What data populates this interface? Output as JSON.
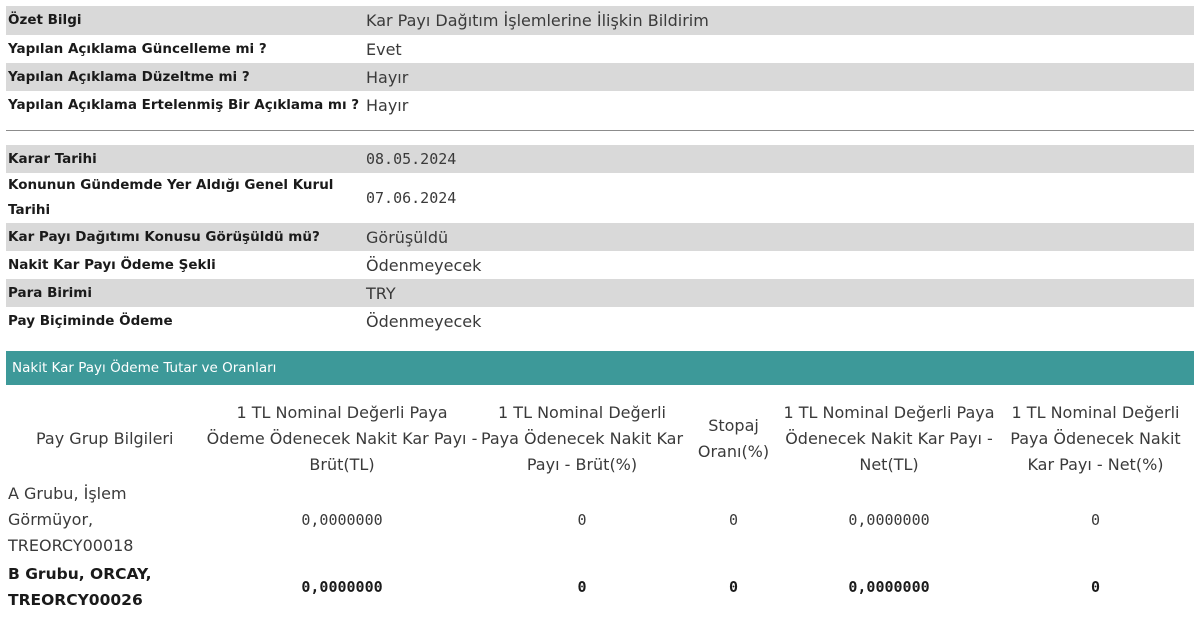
{
  "summary": [
    {
      "label": "Özet Bilgi",
      "value": "Kar Payı Dağıtım İşlemlerine İlişkin Bildirim"
    },
    {
      "label": "Yapılan Açıklama Güncelleme mi ?",
      "value": "Evet"
    },
    {
      "label": "Yapılan Açıklama Düzeltme mi ?",
      "value": "Hayır"
    },
    {
      "label": "Yapılan Açıklama Ertelenmiş Bir Açıklama mı ?",
      "value": "Hayır"
    }
  ],
  "decision": [
    {
      "label": "Karar Tarihi",
      "value": "08.05.2024"
    },
    {
      "label": "Konunun Gündemde Yer Aldığı Genel Kurul Tarihi",
      "value": "07.06.2024"
    },
    {
      "label": "Kar Payı Dağıtımı Konusu Görüşüldü mü?",
      "value": "Görüşüldü"
    },
    {
      "label": "Nakit Kar Payı Ödeme Şekli",
      "value": "Ödenmeyecek"
    },
    {
      "label": "Para Birimi",
      "value": "TRY"
    },
    {
      "label": "Pay Biçiminde Ödeme",
      "value": "Ödenmeyecek"
    }
  ],
  "payment_section": {
    "title": "Nakit Kar Payı Ödeme Tutar ve Oranları",
    "headers": [
      "Pay Grup Bilgileri",
      "1 TL Nominal Değerli Paya Ödeme Ödenecek Nakit Kar Payı - Brüt(TL)",
      "1 TL Nominal Değerli Paya Ödenecek Nakit Kar Payı - Brüt(%)",
      "Stopaj Oranı(%)",
      "1 TL Nominal Değerli Paya Ödenecek Nakit Kar Payı - Net(TL)",
      "1 TL Nominal Değerli Paya Ödenecek Nakit Kar Payı - Net(%)"
    ],
    "rows": [
      {
        "group": "A Grubu, İşlem Görmüyor, TREORCY00018",
        "gross_tl": "0,0000000",
        "gross_pct": "0",
        "withholding_pct": "0",
        "net_tl": "0,0000000",
        "net_pct": "0"
      },
      {
        "group": "B Grubu, ORCAY, TREORCY00026",
        "gross_tl": "0,0000000",
        "gross_pct": "0",
        "withholding_pct": "0",
        "net_tl": "0,0000000",
        "net_pct": "0"
      }
    ]
  },
  "colors": {
    "row_shade": "#d9d9d9",
    "section_header_bg": "#3d9999",
    "divider": "#8c8c8c"
  }
}
